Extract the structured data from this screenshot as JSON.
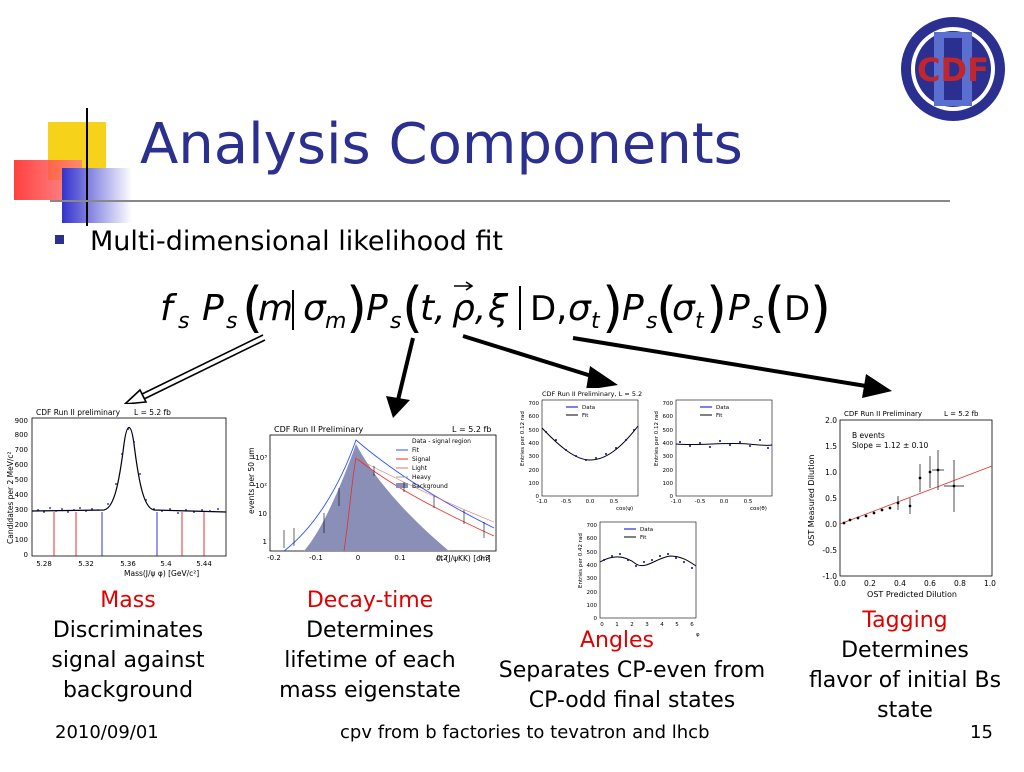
{
  "slide": {
    "title": "Analysis Components",
    "bullet": "Multi-dimensional likelihood fit",
    "logo_text": "CDF",
    "footer": {
      "date": "2010/09/01",
      "center": "cpv from b factories to tevatron and lhcb",
      "page": "15"
    },
    "formula_symbol_D": "D"
  },
  "colors": {
    "title": "#2b2f8f",
    "caption_heading": "#e00000",
    "logo_blue": "#2b2f8f",
    "logo_red": "#c0262d"
  },
  "captions": {
    "mass": {
      "heading": "Mass",
      "lines": [
        "Discriminates",
        "signal against",
        "background"
      ]
    },
    "decay": {
      "heading": "Decay-time",
      "lines": [
        "Determines",
        "lifetime of each",
        "mass eigenstate"
      ]
    },
    "angles": {
      "heading": "Angles",
      "lines": [
        "Separates CP-even from",
        "CP-odd final states"
      ]
    },
    "tagging": {
      "heading": "Tagging",
      "lines": [
        "Determines",
        "flavor of initial Bs",
        "state"
      ]
    }
  },
  "plots": {
    "mass": {
      "header": "CDF Run II preliminary",
      "lumi": "L = 5.2 fb",
      "ylabel": "Candidates per 2 MeV/c²",
      "xlabel": "Mass(J/ψ φ) [GeV/c²]",
      "yticks": [
        "0",
        "100",
        "200",
        "300",
        "400",
        "500",
        "600",
        "700",
        "800",
        "900"
      ],
      "xticks": [
        "5.28",
        "5.32",
        "5.36",
        "5.4",
        "5.44"
      ]
    },
    "decay": {
      "header": "CDF Run II Preliminary",
      "lumi": "L = 5.2 fb",
      "ylabel": "events per 50 μm",
      "xlabel": "ct (J/ψKK) [cm]",
      "yticks": [
        "10³",
        "10²",
        "10",
        "1"
      ],
      "xticks": [
        "-0.2",
        "-0.1",
        "0",
        "0.1",
        "0.2",
        "0.3"
      ],
      "legend": [
        "Data - signal region",
        "Fit",
        "Signal",
        "Light",
        "Heavy",
        "Background"
      ]
    },
    "angles": {
      "header": "CDF Run II Preliminary, L = 5.2 fb",
      "legend_data": "Data",
      "legend_fit": "Fit",
      "p1": {
        "ylabel": "Entries per 0.12 rad",
        "xlabel": "cos(ψ)",
        "xticks": [
          "-1.0",
          "-0.5",
          "0.0",
          "0.5"
        ],
        "yticks": [
          "0",
          "100",
          "200",
          "300",
          "400",
          "500",
          "600",
          "700"
        ]
      },
      "p2": {
        "ylabel": "Entries per 0.12 rad",
        "xlabel": "cos(θ)",
        "xticks": [
          "-1.0",
          "-0.5",
          "0.0",
          "0.5"
        ],
        "yticks": [
          "0",
          "100",
          "200",
          "300",
          "400",
          "500",
          "600",
          "700"
        ]
      },
      "p3": {
        "ylabel": "Entries per 0.42 rad",
        "xlabel": "φ",
        "xticks": [
          "0",
          "1",
          "2",
          "3",
          "4",
          "5",
          "6"
        ],
        "yticks": [
          "0",
          "100",
          "200",
          "300",
          "400",
          "500",
          "600",
          "700"
        ]
      }
    },
    "tagging": {
      "header": "CDF Run II Preliminary",
      "lumi": "L = 5.2 fb",
      "ylabel": "OST Measured Dilution",
      "xlabel": "OST Predicted Dilution",
      "note1": "B events",
      "note2": "Slope = 1.12 ± 0.10",
      "yticks": [
        "-1.0",
        "-0.5",
        "0.0",
        "0.5",
        "1.0",
        "1.5",
        "2.0"
      ],
      "xticks": [
        "0.0",
        "0.2",
        "0.4",
        "0.6",
        "0.8",
        "1.0"
      ]
    }
  }
}
